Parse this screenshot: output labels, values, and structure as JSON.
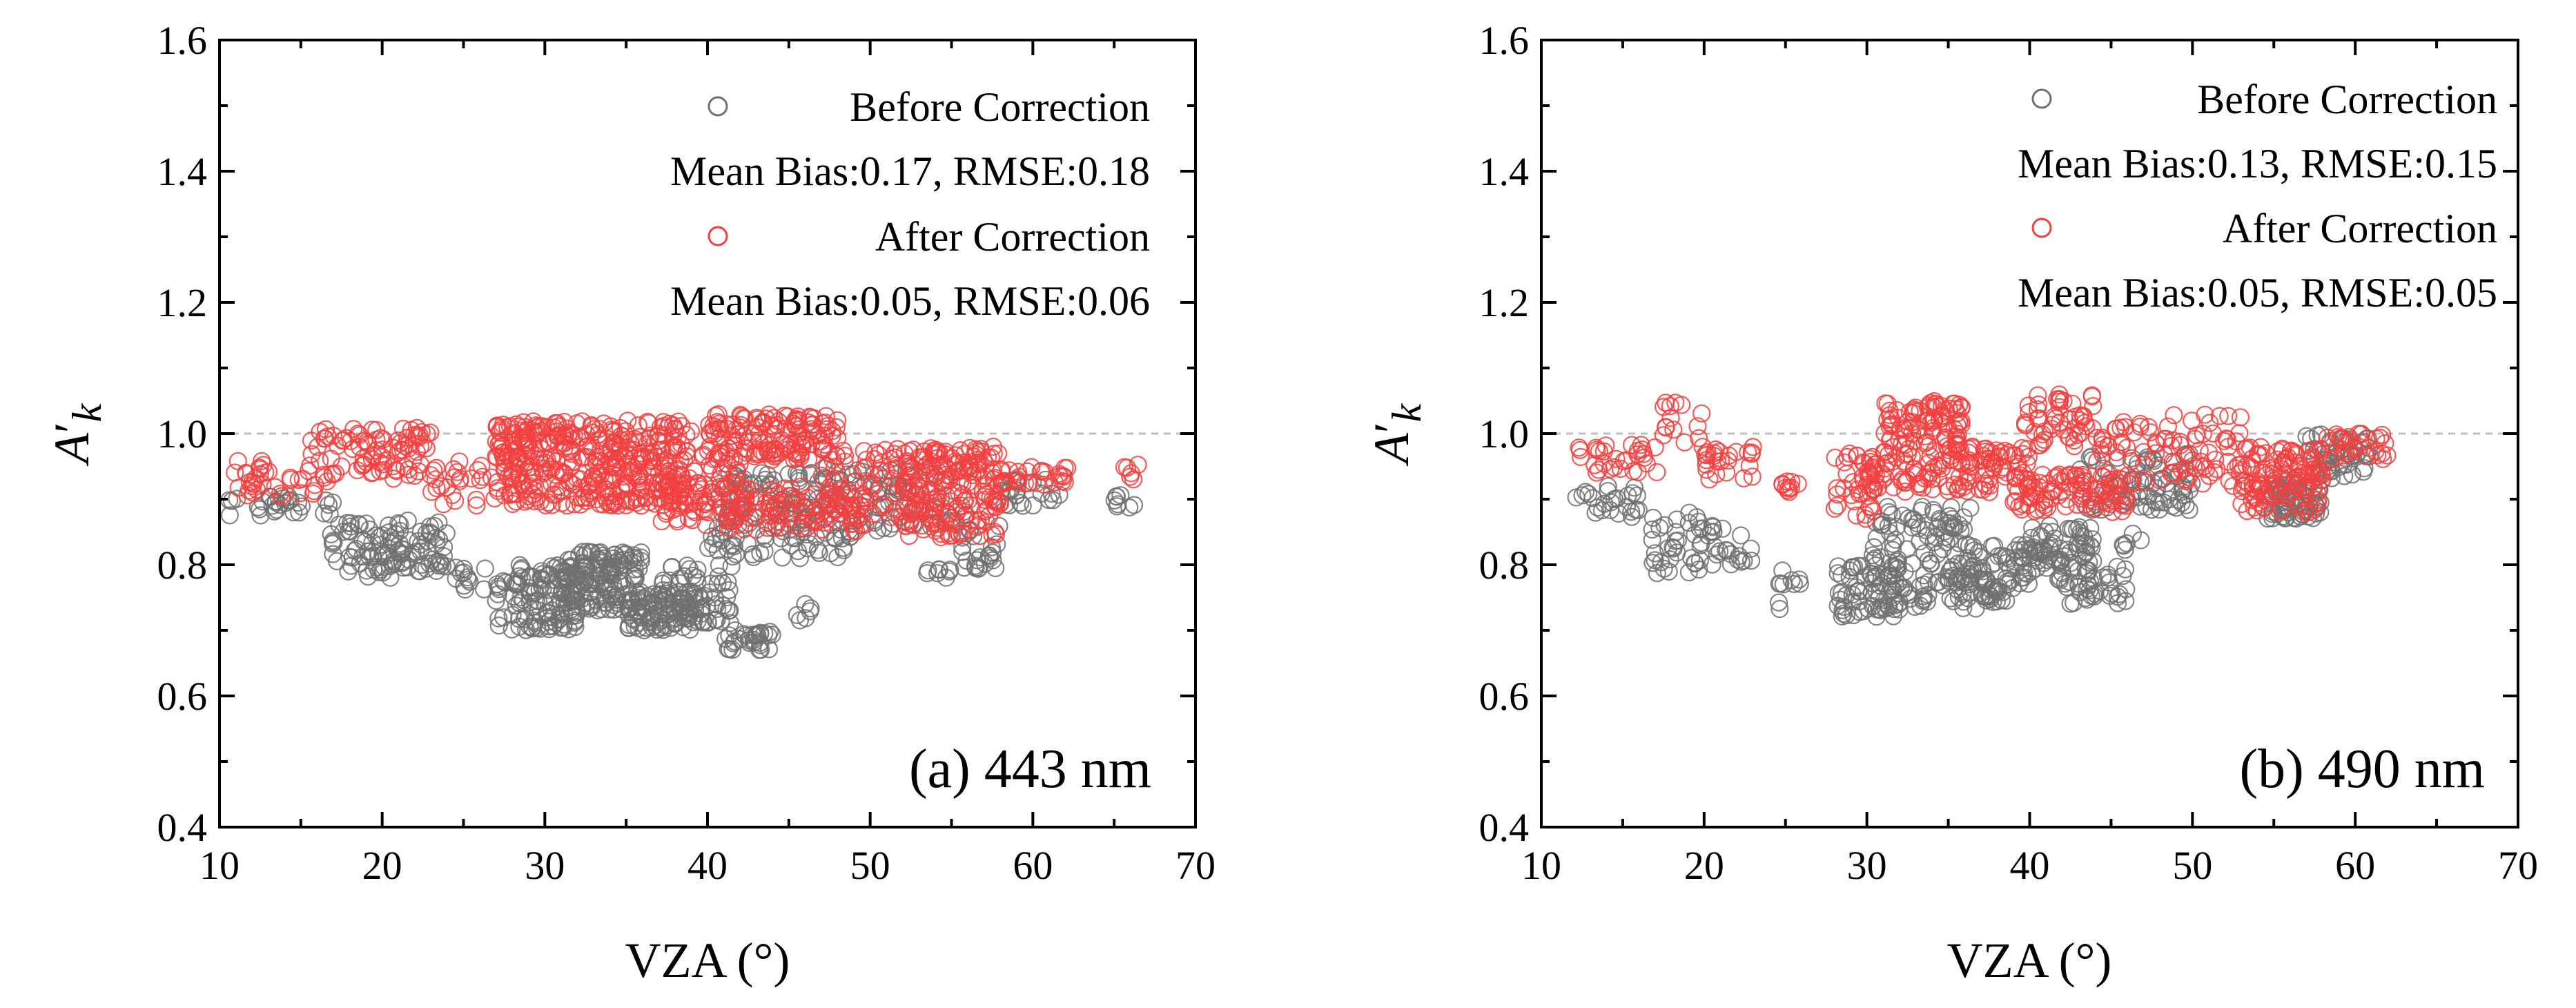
{
  "chart_data": [
    {
      "type": "scatter",
      "panel_label": "(a) 443 nm",
      "xlabel": "VZA (°)",
      "ylabel_base": "A",
      "ylabel_prime": "′",
      "ylabel_sub": "k",
      "xlim": [
        10,
        70
      ],
      "ylim": [
        0.4,
        1.6
      ],
      "xticks": [
        10,
        20,
        30,
        40,
        50,
        60,
        70
      ],
      "yticks": [
        0.4,
        0.6,
        0.8,
        1.0,
        1.2,
        1.4,
        1.6
      ],
      "xtick_labels": [
        "10",
        "20",
        "30",
        "40",
        "50",
        "60",
        "70"
      ],
      "ytick_labels": [
        "0.4",
        "0.6",
        "0.8",
        "1.0",
        "1.2",
        "1.4",
        "1.6"
      ],
      "reference_line_y": 1.0,
      "legend": [
        {
          "name": "Before Correction",
          "stats": "Mean Bias:0.17, RMSE:0.18",
          "color": "#707070"
        },
        {
          "name": "After Correction",
          "stats": "Mean Bias:0.05, RMSE:0.06",
          "color": "#f24040"
        }
      ],
      "series": [
        {
          "name": "Before Correction",
          "color": "#707070",
          "clusters": [
            {
              "x": [
                10.5,
                17.0
              ],
              "y": [
                0.875,
                0.905
              ],
              "n": 30
            },
            {
              "x": [
                16.5,
                20.5
              ],
              "y": [
                0.78,
                0.87
              ],
              "n": 50
            },
            {
              "x": [
                20.0,
                24.0
              ],
              "y": [
                0.79,
                0.87
              ],
              "n": 60
            },
            {
              "x": [
                24.0,
                27.0
              ],
              "y": [
                0.76,
                0.8
              ],
              "n": 12
            },
            {
              "x": [
                27.0,
                32.0
              ],
              "y": [
                0.7,
                0.8
              ],
              "n": 120
            },
            {
              "x": [
                31.0,
                36.0
              ],
              "y": [
                0.73,
                0.82
              ],
              "n": 150
            },
            {
              "x": [
                35.0,
                39.0
              ],
              "y": [
                0.7,
                0.76
              ],
              "n": 80
            },
            {
              "x": [
                37.0,
                41.5
              ],
              "y": [
                0.71,
                0.8
              ],
              "n": 80
            },
            {
              "x": [
                41.0,
                44.0
              ],
              "y": [
                0.67,
                0.7
              ],
              "n": 30
            },
            {
              "x": [
                40.0,
                49.0
              ],
              "y": [
                0.81,
                0.94
              ],
              "n": 150
            },
            {
              "x": [
                45.5,
                47.0
              ],
              "y": [
                0.71,
                0.74
              ],
              "n": 6
            },
            {
              "x": [
                47.0,
                56.0
              ],
              "y": [
                0.85,
                0.95
              ],
              "n": 70
            },
            {
              "x": [
                53.5,
                55.0
              ],
              "y": [
                0.78,
                0.8
              ],
              "n": 8
            },
            {
              "x": [
                55.5,
                58.0
              ],
              "y": [
                0.79,
                0.86
              ],
              "n": 25
            },
            {
              "x": [
                58.0,
                62.0
              ],
              "y": [
                0.89,
                0.93
              ],
              "n": 25
            },
            {
              "x": [
                65.0,
                66.5
              ],
              "y": [
                0.88,
                0.91
              ],
              "n": 8
            }
          ]
        },
        {
          "name": "After Correction",
          "color": "#f24040",
          "clusters": [
            {
              "x": [
                10.5,
                17.0
              ],
              "y": [
                0.9,
                0.96
              ],
              "n": 35
            },
            {
              "x": [
                15.5,
                23.0
              ],
              "y": [
                0.93,
                1.01
              ],
              "n": 90
            },
            {
              "x": [
                23.0,
                27.0
              ],
              "y": [
                0.89,
                0.96
              ],
              "n": 25
            },
            {
              "x": [
                27.0,
                39.0
              ],
              "y": [
                0.89,
                1.02
              ],
              "n": 420
            },
            {
              "x": [
                37.0,
                42.0
              ],
              "y": [
                0.86,
                0.97
              ],
              "n": 80
            },
            {
              "x": [
                40.0,
                48.0
              ],
              "y": [
                0.96,
                1.03
              ],
              "n": 150
            },
            {
              "x": [
                41.0,
                50.0
              ],
              "y": [
                0.85,
                0.92
              ],
              "n": 100
            },
            {
              "x": [
                47.0,
                54.0
              ],
              "y": [
                0.86,
                0.98
              ],
              "n": 80
            },
            {
              "x": [
                52.0,
                58.0
              ],
              "y": [
                0.84,
                0.98
              ],
              "n": 180
            },
            {
              "x": [
                58.0,
                62.5
              ],
              "y": [
                0.92,
                0.95
              ],
              "n": 30
            },
            {
              "x": [
                65.5,
                66.5
              ],
              "y": [
                0.93,
                0.96
              ],
              "n": 6
            }
          ]
        }
      ]
    },
    {
      "type": "scatter",
      "panel_label": "(b) 490 nm",
      "xlabel": "VZA (°)",
      "ylabel_base": "A",
      "ylabel_prime": "′",
      "ylabel_sub": "k",
      "xlim": [
        10,
        70
      ],
      "ylim": [
        0.4,
        1.6
      ],
      "xticks": [
        10,
        20,
        30,
        40,
        50,
        60,
        70
      ],
      "yticks": [
        0.4,
        0.6,
        0.8,
        1.0,
        1.2,
        1.4,
        1.6
      ],
      "xtick_labels": [
        "10",
        "20",
        "30",
        "40",
        "50",
        "60",
        "70"
      ],
      "ytick_labels": [
        "0.4",
        "0.6",
        "0.8",
        "1.0",
        "1.2",
        "1.4",
        "1.6"
      ],
      "reference_line_y": 1.0,
      "legend": [
        {
          "name": "Before Correction",
          "stats": "Mean Bias:0.13, RMSE:0.15",
          "color": "#707070"
        },
        {
          "name": "After Correction",
          "stats": "Mean Bias:0.05, RMSE:0.05",
          "color": "#f24040"
        }
      ],
      "series": [
        {
          "name": "Before Correction",
          "color": "#707070",
          "clusters": [
            {
              "x": [
                12.0,
                17.0
              ],
              "y": [
                0.87,
                0.92
              ],
              "n": 25
            },
            {
              "x": [
                16.5,
                21.0
              ],
              "y": [
                0.78,
                0.88
              ],
              "n": 45
            },
            {
              "x": [
                21.0,
                23.0
              ],
              "y": [
                0.8,
                0.86
              ],
              "n": 12
            },
            {
              "x": [
                24.5,
                26.0
              ],
              "y": [
                0.77,
                0.8
              ],
              "n": 8
            },
            {
              "x": [
                24.5,
                25.0
              ],
              "y": [
                0.73,
                0.75
              ],
              "n": 2
            },
            {
              "x": [
                28.0,
                32.0
              ],
              "y": [
                0.72,
                0.8
              ],
              "n": 60
            },
            {
              "x": [
                30.0,
                37.0
              ],
              "y": [
                0.73,
                0.89
              ],
              "n": 140
            },
            {
              "x": [
                35.0,
                39.0
              ],
              "y": [
                0.74,
                0.78
              ],
              "n": 40
            },
            {
              "x": [
                37.0,
                42.0
              ],
              "y": [
                0.77,
                0.83
              ],
              "n": 50
            },
            {
              "x": [
                40.0,
                44.0
              ],
              "y": [
                0.8,
                0.86
              ],
              "n": 50
            },
            {
              "x": [
                42.0,
                46.0
              ],
              "y": [
                0.74,
                0.8
              ],
              "n": 40
            },
            {
              "x": [
                43.0,
                50.0
              ],
              "y": [
                0.88,
                0.97
              ],
              "n": 80
            },
            {
              "x": [
                45.5,
                47.0
              ],
              "y": [
                0.82,
                0.85
              ],
              "n": 6
            },
            {
              "x": [
                54.5,
                58.0
              ],
              "y": [
                0.87,
                0.93
              ],
              "n": 70
            },
            {
              "x": [
                57.0,
                61.0
              ],
              "y": [
                0.93,
                1.0
              ],
              "n": 50
            }
          ]
        },
        {
          "name": "After Correction",
          "color": "#f24040",
          "clusters": [
            {
              "x": [
                12.0,
                17.5
              ],
              "y": [
                0.94,
                0.99
              ],
              "n": 30
            },
            {
              "x": [
                17.5,
                20.0
              ],
              "y": [
                0.96,
                1.05
              ],
              "n": 15
            },
            {
              "x": [
                20.0,
                23.0
              ],
              "y": [
                0.93,
                0.98
              ],
              "n": 25
            },
            {
              "x": [
                24.5,
                26.0
              ],
              "y": [
                0.91,
                0.93
              ],
              "n": 10
            },
            {
              "x": [
                28.0,
                31.0
              ],
              "y": [
                0.87,
                0.97
              ],
              "n": 40
            },
            {
              "x": [
                31.0,
                36.5
              ],
              "y": [
                0.95,
                1.05
              ],
              "n": 120
            },
            {
              "x": [
                30.0,
                40.0
              ],
              "y": [
                0.91,
                0.96
              ],
              "n": 90
            },
            {
              "x": [
                37.0,
                40.0
              ],
              "y": [
                0.96,
                0.98
              ],
              "n": 20
            },
            {
              "x": [
                39.5,
                44.0
              ],
              "y": [
                0.98,
                1.06
              ],
              "n": 50
            },
            {
              "x": [
                39.0,
                46.0
              ],
              "y": [
                0.88,
                0.94
              ],
              "n": 90
            },
            {
              "x": [
                44.0,
                53.0
              ],
              "y": [
                0.92,
                1.03
              ],
              "n": 90
            },
            {
              "x": [
                53.0,
                58.0
              ],
              "y": [
                0.88,
                0.98
              ],
              "n": 120
            },
            {
              "x": [
                58.0,
                62.0
              ],
              "y": [
                0.96,
                1.0
              ],
              "n": 30
            }
          ]
        }
      ]
    }
  ]
}
